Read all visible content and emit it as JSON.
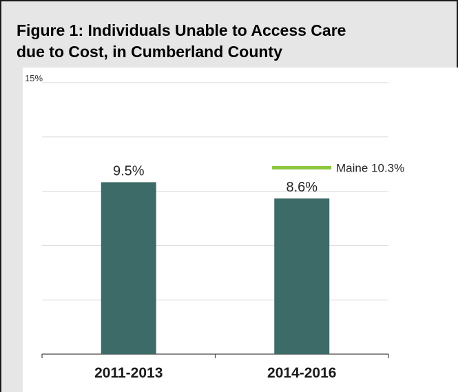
{
  "figure": {
    "title_line1": "Figure 1: Individuals Unable to Access Care",
    "title_line2": "due to Cost, in Cumberland County"
  },
  "chart_data": {
    "type": "bar",
    "title": "Figure 1: Individuals Unable to Access Care due to Cost, in Cumberland County",
    "categories": [
      "2011-2013",
      "2014-2016"
    ],
    "series": [
      {
        "values": [
          9.5,
          8.6
        ],
        "data_labels": [
          "9.5%",
          "8.6%"
        ],
        "color": "#3d6b67"
      }
    ],
    "reference_line": {
      "label": "Maine 10.3%",
      "value": 10.3,
      "color": "#8cc63f"
    },
    "y_axis": {
      "max_label": "15%"
    },
    "ylim": [
      0,
      15
    ],
    "grid": true,
    "gridline_values": [
      3,
      6,
      9,
      12,
      15
    ],
    "xlabel": "",
    "ylabel": ""
  }
}
